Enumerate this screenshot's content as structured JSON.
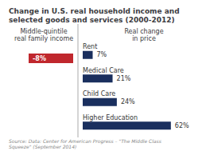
{
  "chart_data": [
    {
      "type": "bar",
      "orientation": "horizontal",
      "title": "Change in U.S. real household income and selected goods and services (2000-2012)",
      "subtitle": "Middle-quintile\nreal family income",
      "annotations": [
        "Source: Data: Center for American Progress – \"The Middle Class Squeeze\" (September 2014)"
      ],
      "categories": [
        null
      ],
      "values": [
        -8
      ],
      "value_labels": [
        "-8%"
      ],
      "color": "#c0272d",
      "data_labels": true,
      "xlim": [
        -12,
        0
      ],
      "tick_labels": false,
      "grid": false
    },
    {
      "type": "bar",
      "orientation": "horizontal",
      "subtitle": "Real change\nin price",
      "categories": [
        "Rent",
        "Medical Care",
        "Child Care",
        "Higher Education"
      ],
      "values": [
        7,
        21,
        24,
        62
      ],
      "value_labels": [
        "7%",
        "21%",
        "24%",
        "62%"
      ],
      "color": "#1a2f5e",
      "data_labels": true,
      "xlim": [
        0,
        80
      ],
      "tick_labels": "y",
      "grid": false
    }
  ]
}
